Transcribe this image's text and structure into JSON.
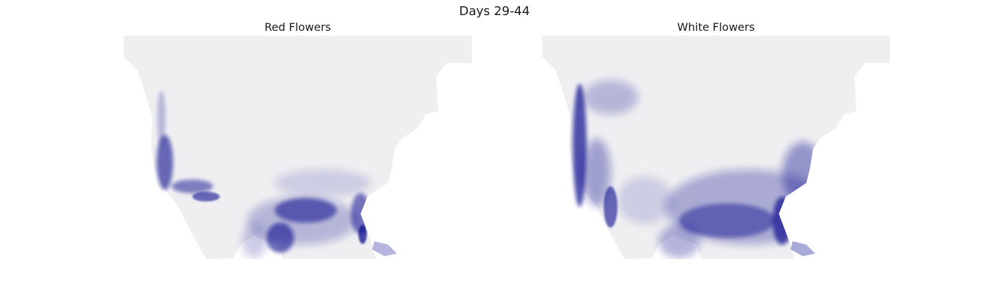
{
  "figure": {
    "suptitle": "Days 29-44",
    "background_color": "#ffffff",
    "land_color": "#efeff2",
    "intensity_color": "#0b0b8f"
  },
  "panels": [
    {
      "title": "Red Flowers"
    },
    {
      "title": "White Flowers"
    }
  ]
}
